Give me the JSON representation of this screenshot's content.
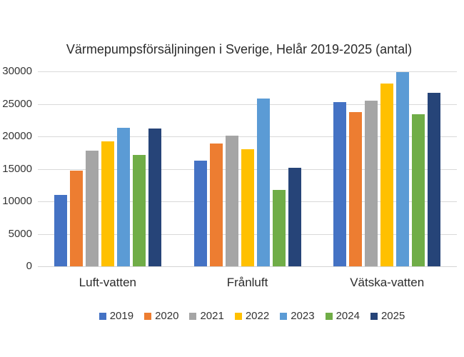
{
  "chart_data": {
    "type": "bar",
    "title": "Värmepumpsförsäljningen i Sverige, Helår 2019-2025 (antal)",
    "categories": [
      "Luft-vatten",
      "Frånluft",
      "Vätska-vatten"
    ],
    "series": [
      {
        "name": "2019",
        "color": "#4472C4",
        "values": [
          11000,
          16300,
          25300
        ]
      },
      {
        "name": "2020",
        "color": "#ED7D31",
        "values": [
          14700,
          18900,
          23700
        ]
      },
      {
        "name": "2021",
        "color": "#A5A5A5",
        "values": [
          17800,
          20100,
          25500
        ]
      },
      {
        "name": "2022",
        "color": "#FFC000",
        "values": [
          19200,
          18000,
          28100
        ]
      },
      {
        "name": "2023",
        "color": "#5B9BD5",
        "values": [
          21300,
          25800,
          29900
        ]
      },
      {
        "name": "2024",
        "color": "#70AD47",
        "values": [
          17100,
          11800,
          23400
        ]
      },
      {
        "name": "2025",
        "color": "#264478",
        "values": [
          21200,
          15200,
          26700
        ]
      }
    ],
    "ylim": [
      0,
      30000
    ],
    "yticks": [
      0,
      5000,
      10000,
      15000,
      20000,
      25000,
      30000
    ],
    "ytick_labels": [
      "0",
      "5000",
      "10000",
      "15000",
      "20000",
      "25000",
      "30000"
    ],
    "grid": true,
    "gridline_color": "#d9d9d9",
    "background_color": "#ffffff",
    "legend_position": "bottom"
  }
}
